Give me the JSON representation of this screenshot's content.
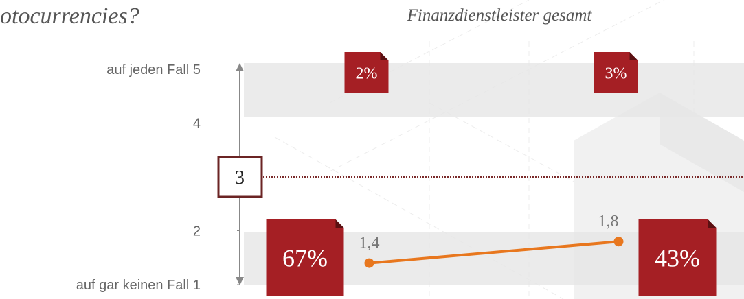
{
  "chart_data": {
    "type": "line",
    "title": "otocurrencies?",
    "subtitle": "Finanzdienstleister gesamt",
    "categories": [
      null,
      null
    ],
    "series": [
      {
        "name": null,
        "color": "#e8771e",
        "values": [
          1.4,
          1.8
        ],
        "value_labels": [
          "1,4",
          "1,8"
        ]
      }
    ],
    "ylim": [
      1,
      5
    ],
    "yticks": [
      {
        "value": 5,
        "label": "auf jeden Fall 5"
      },
      4,
      2,
      {
        "value": 1,
        "label": "auf  gar keinen Fall 1"
      }
    ],
    "reference_line": 3,
    "share_top": {
      "values": [
        2,
        3
      ],
      "value_labels": [
        "2%",
        "3%"
      ],
      "color": "#a51f24"
    },
    "share_bottom": {
      "values": [
        67,
        43
      ],
      "value_labels": [
        "67%",
        "43%"
      ],
      "color": "#a51f24"
    }
  }
}
